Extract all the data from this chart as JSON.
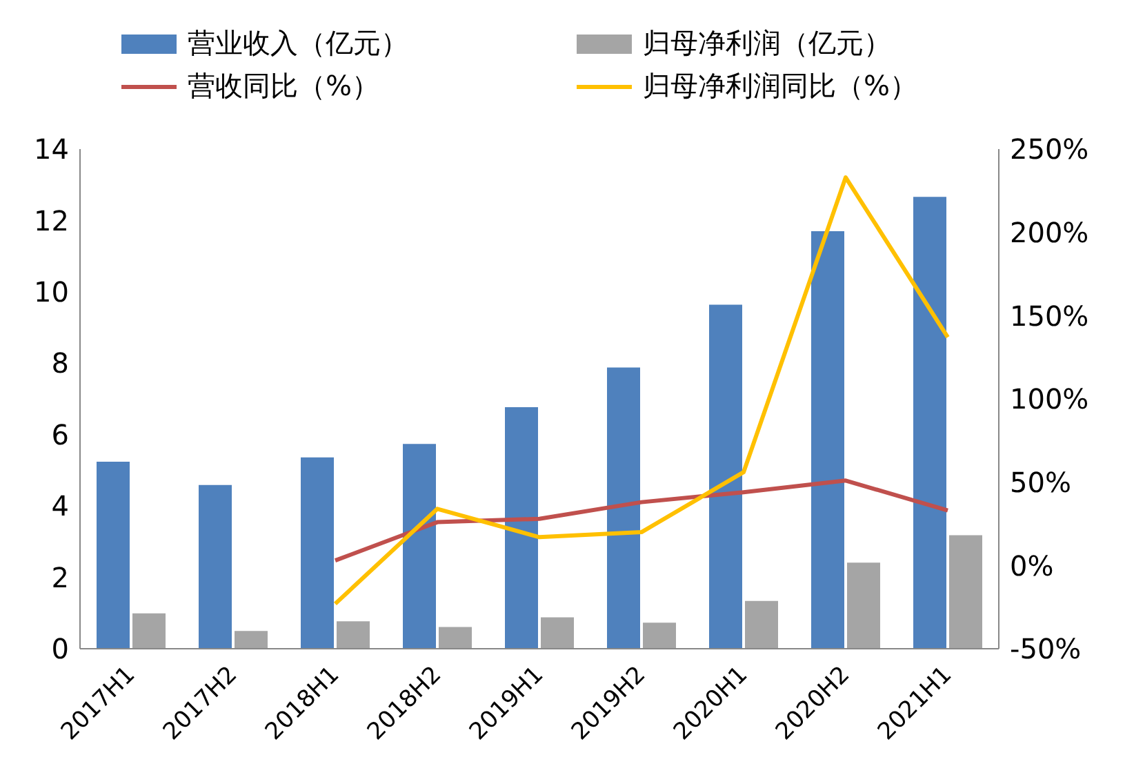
{
  "chart_data": {
    "type": "bar",
    "categories": [
      "2017H1",
      "2017H2",
      "2018H1",
      "2018H2",
      "2019H1",
      "2019H2",
      "2020H1",
      "2020H2",
      "2021H1"
    ],
    "series": [
      {
        "name": "营业收入（亿元）",
        "color": "#4f81bd",
        "values": [
          5.24,
          4.59,
          5.36,
          5.74,
          6.77,
          7.88,
          9.64,
          11.7,
          12.66
        ]
      },
      {
        "name": "归母净利润（亿元）",
        "color": "#a5a5a5",
        "values": [
          0.99,
          0.5,
          0.77,
          0.61,
          0.88,
          0.73,
          1.34,
          2.41,
          3.18
        ]
      },
      {
        "name": "营收同比（%）",
        "type": "line",
        "axis": "y2",
        "color": "#c0504d",
        "values": [
          null,
          null,
          3,
          26,
          28,
          38,
          44,
          51,
          33
        ]
      },
      {
        "name": "归母净利润同比（%）",
        "type": "line",
        "axis": "y2",
        "color": "#ffc000",
        "values": [
          null,
          null,
          -23,
          34,
          17,
          20,
          56,
          233,
          137
        ]
      }
    ],
    "ylim": [
      0,
      14
    ],
    "yticks": [
      0,
      2,
      4,
      6,
      8,
      10,
      12,
      14
    ],
    "y2lim": [
      -50,
      250
    ],
    "y2ticks": [
      {
        "value": -50,
        "label": "-50%"
      },
      {
        "value": 0,
        "label": "0%"
      },
      {
        "value": 50,
        "label": "50%"
      },
      {
        "value": 100,
        "label": "100%"
      },
      {
        "value": 150,
        "label": "150%"
      },
      {
        "value": 200,
        "label": "200%"
      },
      {
        "value": 250,
        "label": "250%"
      }
    ],
    "legend": "top",
    "grid": false,
    "marker": "none",
    "line_style": "solid"
  }
}
